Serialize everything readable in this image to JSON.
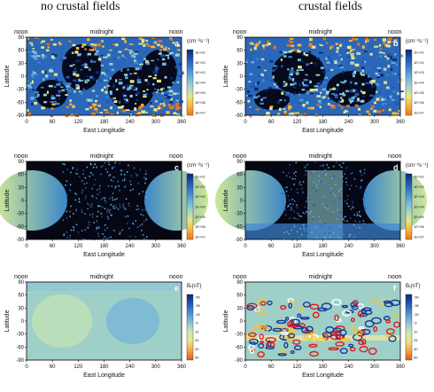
{
  "column_titles": [
    "no crustal fields",
    "crustal fields"
  ],
  "chart_data": [
    {
      "type": "heatmap",
      "panel": "a",
      "column": "no crustal fields",
      "top_labels": [
        "noon",
        "midnight",
        "noon"
      ],
      "xlabel": "East Longitude",
      "ylabel": "Latitude",
      "xlim": [
        0,
        360
      ],
      "ylim": [
        -90,
        90
      ],
      "x_ticks": [
        "0",
        "60",
        "120",
        "180",
        "240",
        "300",
        "360"
      ],
      "y_ticks": [
        "90",
        "60",
        "30",
        "0",
        "-30",
        "-60",
        "-90"
      ],
      "colorbar": {
        "unit": "(cm⁻²s⁻¹)",
        "ticks": [
          "1E+01",
          "1E+02",
          "1E+03",
          "1E+04",
          "1E+05",
          "1E+06",
          "1E+07"
        ],
        "colors": [
          "#082a74",
          "#2156b8",
          "#3f86d2",
          "#6fb4df",
          "#a7d6c8",
          "#e7e58a",
          "#f7b43c",
          "#ef7617"
        ]
      }
    },
    {
      "type": "heatmap",
      "panel": "b",
      "column": "crustal fields",
      "top_labels": [
        "noon",
        "midnight",
        "noon"
      ],
      "xlabel": "East Longitude",
      "ylabel": "Latitude",
      "xlim": [
        0,
        360
      ],
      "ylim": [
        -90,
        90
      ],
      "x_ticks": [
        "0",
        "60",
        "120",
        "180",
        "240",
        "300",
        "360"
      ],
      "y_ticks": [
        "90",
        "60",
        "30",
        "0",
        "-30",
        "-60",
        "-90"
      ],
      "colorbar": {
        "unit": "(cm⁻²s⁻¹)",
        "ticks": [
          "1E+01",
          "1E+02",
          "1E+03",
          "1E+04",
          "1E+05",
          "1E+06",
          "1E+07"
        ],
        "colors": [
          "#082a74",
          "#2156b8",
          "#3f86d2",
          "#6fb4df",
          "#a7d6c8",
          "#e7e58a",
          "#f7b43c",
          "#ef7617"
        ]
      }
    },
    {
      "type": "heatmap",
      "panel": "c",
      "column": "no crustal fields",
      "top_labels": [
        "noon",
        "midnight",
        "noon"
      ],
      "xlabel": "East Longitude",
      "ylabel": "Latitude",
      "xlim": [
        0,
        360
      ],
      "ylim": [
        -90,
        90
      ],
      "x_ticks": [
        "0",
        "60",
        "120",
        "180",
        "240",
        "300",
        "360"
      ],
      "y_ticks": [
        "90",
        "60",
        "30",
        "0",
        "-30",
        "-60",
        "-90"
      ],
      "colorbar": {
        "unit": "(cm⁻²s⁻¹)",
        "ticks": [
          "1E+01",
          "1E+02",
          "1E+03",
          "1E+04",
          "1E+05",
          "1E+06",
          "1E+07"
        ],
        "colors": [
          "#082a74",
          "#2156b8",
          "#3f86d2",
          "#6fb4df",
          "#a7d6c8",
          "#e7e58a",
          "#f7b43c",
          "#ef7617"
        ]
      }
    },
    {
      "type": "heatmap",
      "panel": "d",
      "column": "crustal fields",
      "top_labels": [
        "noon",
        "midnight",
        "noon"
      ],
      "xlabel": "East Longitude",
      "ylabel": "Latitude",
      "xlim": [
        0,
        360
      ],
      "ylim": [
        -90,
        90
      ],
      "x_ticks": [
        "0",
        "60",
        "120",
        "180",
        "240",
        "300",
        "360"
      ],
      "y_ticks": [
        "90",
        "60",
        "30",
        "0",
        "-30",
        "-60",
        "-90"
      ],
      "colorbar": {
        "unit": "(cm⁻²s⁻¹)",
        "ticks": [
          "1E+01",
          "1E+02",
          "1E+03",
          "1E+04",
          "1E+05",
          "1E+06",
          "1E+07"
        ],
        "colors": [
          "#082a74",
          "#2156b8",
          "#3f86d2",
          "#6fb4df",
          "#a7d6c8",
          "#e7e58a",
          "#f7b43c",
          "#ef7617"
        ]
      }
    },
    {
      "type": "heatmap",
      "panel": "e",
      "column": "no crustal fields",
      "top_labels": [
        "noon",
        "midnight",
        "noon"
      ],
      "xlabel": "East Longitude",
      "ylabel": "Latitude",
      "xlim": [
        0,
        360
      ],
      "ylim": [
        -90,
        90
      ],
      "x_ticks": [
        "0",
        "60",
        "120",
        "180",
        "240",
        "300",
        "360"
      ],
      "y_ticks": [
        "90",
        "60",
        "30",
        "0",
        "-30",
        "-60",
        "-90"
      ],
      "colorbar": {
        "unit": "Bᵣ(nT)",
        "ticks": [
          "-50",
          "-35",
          "-20",
          "-5",
          "10",
          "25",
          "40",
          "50"
        ],
        "colors": [
          "#082a74",
          "#2156b8",
          "#4a90d4",
          "#8cc3d8",
          "#cfe6b0",
          "#eee48a",
          "#f2a640",
          "#e2561c"
        ]
      }
    },
    {
      "type": "heatmap",
      "panel": "f",
      "column": "crustal fields",
      "top_labels": [
        "noon",
        "midnight",
        "noon"
      ],
      "xlabel": "East Longitude",
      "ylabel": "Latitude",
      "xlim": [
        0,
        360
      ],
      "ylim": [
        -90,
        90
      ],
      "x_ticks": [
        "0",
        "60",
        "120",
        "180",
        "240",
        "300",
        "360"
      ],
      "y_ticks": [
        "90",
        "60",
        "30",
        "0",
        "-30",
        "-60",
        "-90"
      ],
      "colorbar": {
        "unit": "Bᵣ(nT)",
        "ticks": [
          "-50",
          "-35",
          "-20",
          "-5",
          "10",
          "25",
          "40",
          "50"
        ],
        "colors": [
          "#082a74",
          "#2156b8",
          "#4a90d4",
          "#8cc3d8",
          "#cfe6b0",
          "#eee48a",
          "#f2a640",
          "#e2561c"
        ]
      }
    }
  ]
}
